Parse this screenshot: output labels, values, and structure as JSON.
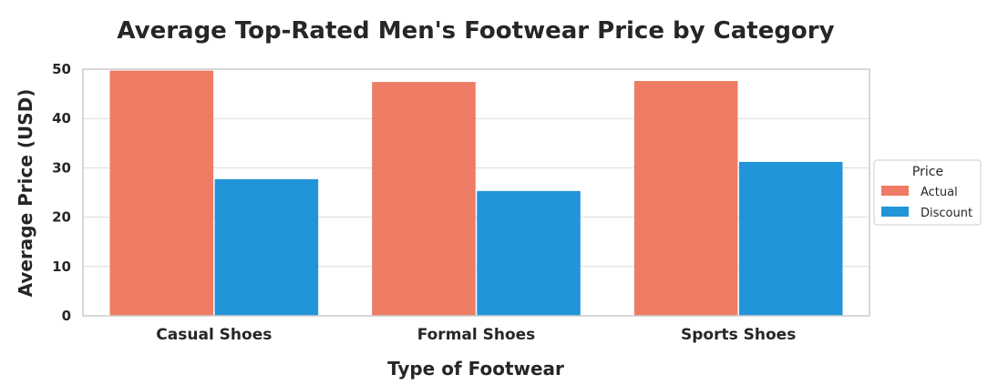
{
  "chart_data": {
    "type": "bar",
    "title": "Average Top-Rated Men's Footwear Price by Category",
    "xlabel": "Type of Footwear",
    "ylabel": "Average Price (USD)",
    "categories": [
      "Casual Shoes",
      "Formal Shoes",
      "Sports Shoes"
    ],
    "series": [
      {
        "name": "Actual",
        "values": [
          49.7,
          47.4,
          47.6
        ],
        "color": "#EE7B63"
      },
      {
        "name": "Discount",
        "values": [
          27.7,
          25.3,
          31.2
        ],
        "color": "#2294D9"
      }
    ],
    "ylim": [
      0,
      50
    ],
    "yticks": [
      0,
      10,
      20,
      30,
      40,
      50
    ],
    "grid": true,
    "legend": {
      "title": "Price",
      "position": "right"
    }
  }
}
